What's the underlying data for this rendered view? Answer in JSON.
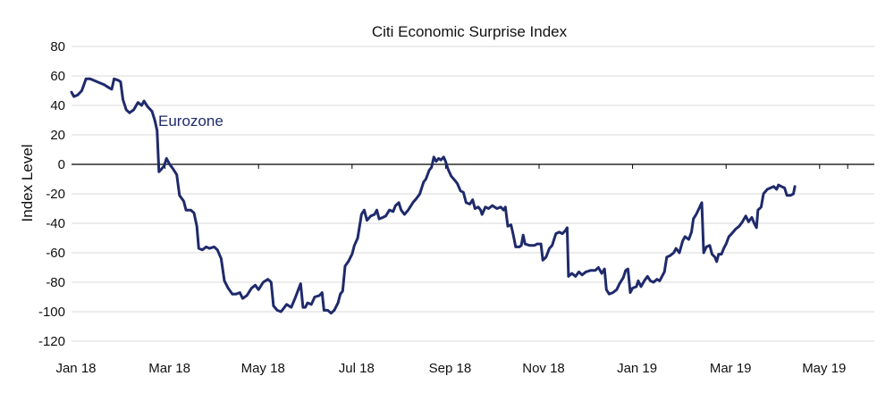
{
  "chart_data": {
    "type": "line",
    "title": "Citi Economic Surprise Index",
    "ylabel": "Index Level",
    "xlabel": "",
    "ylim": [
      -120,
      80
    ],
    "yticks": [
      80,
      60,
      40,
      20,
      0,
      -20,
      -40,
      -60,
      -80,
      -100,
      -120
    ],
    "xticks": [
      "Jan 18",
      "Mar 18",
      "May 18",
      "Jul 18",
      "Sep 18",
      "Nov 18",
      "Jan 19",
      "Mar 19",
      "May 19"
    ],
    "xrange_months": [
      0,
      17.6
    ],
    "grid": "horizontal",
    "line_color": "#1f2a6b",
    "annotation": "Eurozone",
    "series": [
      {
        "name": "Eurozone",
        "points": [
          [
            0.0,
            49
          ],
          [
            0.05,
            46
          ],
          [
            0.13,
            47
          ],
          [
            0.22,
            50
          ],
          [
            0.31,
            58
          ],
          [
            0.4,
            58
          ],
          [
            0.55,
            56
          ],
          [
            0.7,
            54
          ],
          [
            0.8,
            52
          ],
          [
            0.86,
            51
          ],
          [
            0.91,
            58
          ],
          [
            1.0,
            57
          ],
          [
            1.05,
            56
          ],
          [
            1.1,
            44
          ],
          [
            1.17,
            37
          ],
          [
            1.24,
            35
          ],
          [
            1.33,
            37
          ],
          [
            1.42,
            42
          ],
          [
            1.5,
            40
          ],
          [
            1.55,
            43
          ],
          [
            1.63,
            39
          ],
          [
            1.72,
            36
          ],
          [
            1.78,
            30
          ],
          [
            1.83,
            23
          ],
          [
            1.87,
            -5
          ],
          [
            1.93,
            -3
          ],
          [
            1.98,
            -1
          ],
          [
            2.03,
            4
          ],
          [
            2.1,
            0
          ],
          [
            2.17,
            -3
          ],
          [
            2.25,
            -7
          ],
          [
            2.31,
            -21
          ],
          [
            2.4,
            -25
          ],
          [
            2.45,
            -31
          ],
          [
            2.55,
            -31
          ],
          [
            2.62,
            -33
          ],
          [
            2.68,
            -42
          ],
          [
            2.72,
            -57
          ],
          [
            2.8,
            -58
          ],
          [
            2.88,
            -56
          ],
          [
            2.95,
            -57
          ],
          [
            3.05,
            -56
          ],
          [
            3.12,
            -58
          ],
          [
            3.2,
            -64
          ],
          [
            3.27,
            -79
          ],
          [
            3.35,
            -84
          ],
          [
            3.44,
            -88
          ],
          [
            3.52,
            -88
          ],
          [
            3.6,
            -87
          ],
          [
            3.66,
            -91
          ],
          [
            3.75,
            -89
          ],
          [
            3.85,
            -84
          ],
          [
            3.93,
            -82
          ],
          [
            4.0,
            -85
          ],
          [
            4.1,
            -80
          ],
          [
            4.2,
            -78
          ],
          [
            4.27,
            -80
          ],
          [
            4.32,
            -96
          ],
          [
            4.4,
            -99
          ],
          [
            4.48,
            -100
          ],
          [
            4.53,
            -98
          ],
          [
            4.6,
            -95
          ],
          [
            4.7,
            -97
          ],
          [
            4.78,
            -91
          ],
          [
            4.85,
            -85
          ],
          [
            4.9,
            -81
          ],
          [
            4.95,
            -97
          ],
          [
            5.0,
            -97
          ],
          [
            5.05,
            -94
          ],
          [
            5.13,
            -95
          ],
          [
            5.2,
            -90
          ],
          [
            5.3,
            -89
          ],
          [
            5.36,
            -87
          ],
          [
            5.4,
            -99
          ],
          [
            5.48,
            -99
          ],
          [
            5.55,
            -101
          ],
          [
            5.62,
            -99
          ],
          [
            5.7,
            -94
          ],
          [
            5.75,
            -88
          ],
          [
            5.8,
            -86
          ],
          [
            5.85,
            -69
          ],
          [
            5.92,
            -66
          ],
          [
            6.0,
            -61
          ],
          [
            6.05,
            -55
          ],
          [
            6.12,
            -50
          ],
          [
            6.16,
            -42
          ],
          [
            6.2,
            -34
          ],
          [
            6.26,
            -31
          ],
          [
            6.32,
            -38
          ],
          [
            6.4,
            -35
          ],
          [
            6.48,
            -34
          ],
          [
            6.53,
            -31
          ],
          [
            6.58,
            -37
          ],
          [
            6.66,
            -36
          ],
          [
            6.72,
            -35
          ],
          [
            6.8,
            -31
          ],
          [
            6.88,
            -32
          ],
          [
            6.93,
            -28
          ],
          [
            7.0,
            -26
          ],
          [
            7.05,
            -31
          ],
          [
            7.12,
            -34
          ],
          [
            7.2,
            -31
          ],
          [
            7.3,
            -26
          ],
          [
            7.38,
            -23
          ],
          [
            7.45,
            -20
          ],
          [
            7.53,
            -12
          ],
          [
            7.58,
            -10
          ],
          [
            7.65,
            -4
          ],
          [
            7.7,
            -2
          ],
          [
            7.75,
            5
          ],
          [
            7.8,
            2
          ],
          [
            7.85,
            4
          ],
          [
            7.9,
            3
          ],
          [
            7.96,
            5
          ],
          [
            8.0,
            2
          ],
          [
            8.05,
            -3
          ],
          [
            8.12,
            -8
          ],
          [
            8.2,
            -11
          ],
          [
            8.25,
            -13
          ],
          [
            8.32,
            -18
          ],
          [
            8.38,
            -19
          ],
          [
            8.44,
            -26
          ],
          [
            8.52,
            -27
          ],
          [
            8.58,
            -24
          ],
          [
            8.63,
            -30
          ],
          [
            8.7,
            -29
          ],
          [
            8.75,
            -31
          ],
          [
            8.78,
            -34
          ],
          [
            8.85,
            -29
          ],
          [
            8.92,
            -30
          ],
          [
            9.0,
            -28
          ],
          [
            9.1,
            -30
          ],
          [
            9.18,
            -29
          ],
          [
            9.24,
            -31
          ],
          [
            9.28,
            -29
          ],
          [
            9.33,
            -42
          ],
          [
            9.4,
            -41
          ],
          [
            9.45,
            -48
          ],
          [
            9.5,
            -56
          ],
          [
            9.58,
            -56
          ],
          [
            9.62,
            -55
          ],
          [
            9.66,
            -48
          ],
          [
            9.7,
            -54
          ],
          [
            9.8,
            -55
          ],
          [
            9.9,
            -55
          ],
          [
            9.96,
            -54
          ],
          [
            10.04,
            -54
          ],
          [
            10.08,
            -65
          ],
          [
            10.15,
            -63
          ],
          [
            10.22,
            -57
          ],
          [
            10.28,
            -55
          ],
          [
            10.36,
            -47
          ],
          [
            10.43,
            -46
          ],
          [
            10.5,
            -47
          ],
          [
            10.56,
            -45
          ],
          [
            10.6,
            -43
          ],
          [
            10.63,
            -76
          ],
          [
            10.7,
            -74
          ],
          [
            10.78,
            -76
          ],
          [
            10.85,
            -73
          ],
          [
            10.92,
            -75
          ],
          [
            11.0,
            -73
          ],
          [
            11.1,
            -72
          ],
          [
            11.2,
            -72
          ],
          [
            11.27,
            -70
          ],
          [
            11.34,
            -74
          ],
          [
            11.4,
            -71
          ],
          [
            11.44,
            -85
          ],
          [
            11.5,
            -88
          ],
          [
            11.58,
            -87
          ],
          [
            11.66,
            -85
          ],
          [
            11.72,
            -81
          ],
          [
            11.8,
            -77
          ],
          [
            11.85,
            -72
          ],
          [
            11.9,
            -71
          ],
          [
            11.95,
            -87
          ],
          [
            12.0,
            -84
          ],
          [
            12.08,
            -83
          ],
          [
            12.12,
            -79
          ],
          [
            12.18,
            -83
          ],
          [
            12.25,
            -79
          ],
          [
            12.32,
            -76
          ],
          [
            12.38,
            -79
          ],
          [
            12.45,
            -80
          ],
          [
            12.52,
            -78
          ],
          [
            12.58,
            -79
          ],
          [
            12.63,
            -76
          ],
          [
            12.68,
            -73
          ],
          [
            12.73,
            -63
          ],
          [
            12.8,
            -62
          ],
          [
            12.88,
            -60
          ],
          [
            12.93,
            -57
          ],
          [
            13.0,
            -60
          ],
          [
            13.07,
            -52
          ],
          [
            13.12,
            -49
          ],
          [
            13.2,
            -51
          ],
          [
            13.26,
            -46
          ],
          [
            13.3,
            -37
          ],
          [
            13.36,
            -34
          ],
          [
            13.42,
            -30
          ],
          [
            13.48,
            -26
          ],
          [
            13.52,
            -60
          ],
          [
            13.58,
            -56
          ],
          [
            13.65,
            -55
          ],
          [
            13.7,
            -61
          ],
          [
            13.76,
            -63
          ],
          [
            13.8,
            -66
          ],
          [
            13.84,
            -61
          ],
          [
            13.9,
            -61
          ],
          [
            13.95,
            -57
          ],
          [
            14.0,
            -54
          ],
          [
            14.06,
            -49
          ],
          [
            14.12,
            -47
          ],
          [
            14.2,
            -44
          ],
          [
            14.28,
            -42
          ],
          [
            14.35,
            -39
          ],
          [
            14.42,
            -35
          ],
          [
            14.48,
            -39
          ],
          [
            14.55,
            -36
          ],
          [
            14.6,
            -40
          ],
          [
            14.65,
            -43
          ],
          [
            14.68,
            -31
          ],
          [
            14.75,
            -29
          ],
          [
            14.8,
            -20
          ],
          [
            14.88,
            -17
          ],
          [
            14.95,
            -16
          ],
          [
            15.02,
            -15
          ],
          [
            15.08,
            -17
          ],
          [
            15.12,
            -14
          ],
          [
            15.18,
            -15
          ],
          [
            15.25,
            -16
          ],
          [
            15.3,
            -21
          ],
          [
            15.38,
            -21
          ],
          [
            15.44,
            -20
          ],
          [
            15.47,
            -15
          ]
        ]
      }
    ]
  }
}
